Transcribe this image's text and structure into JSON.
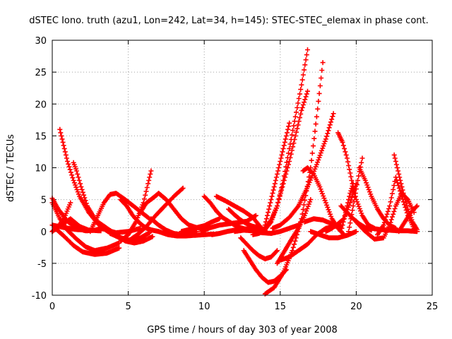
{
  "chart_data": {
    "type": "scatter",
    "title": "dSTEC Iono. truth (azu1, Lon=242, Lat=34, h=145): STEC-STEC_elemax in phase cont.",
    "xlabel": "GPS time / hours of day 303 of year 2008",
    "ylabel": "dSTEC  / TECUs",
    "xlim": [
      0,
      25
    ],
    "ylim": [
      -10,
      30
    ],
    "xticks": [
      0,
      5,
      10,
      15,
      20,
      25
    ],
    "yticks": [
      -10,
      -5,
      0,
      5,
      10,
      15,
      20,
      25,
      30
    ],
    "grid": true,
    "marker": "+",
    "color": "#ff0000",
    "series": [
      {
        "x": [
          0.0,
          0.4,
          1.0,
          1.6,
          2.2,
          2.8,
          3.4
        ],
        "y": [
          5.2,
          3.5,
          1.6,
          0.5,
          0.1,
          0.2,
          0.6
        ]
      },
      {
        "x": [
          0.0,
          0.5,
          1.0,
          1.6,
          2.2,
          2.8,
          3.6,
          4.4
        ],
        "y": [
          4.5,
          2.0,
          0.2,
          -1.2,
          -2.4,
          -3.0,
          -2.6,
          -1.8
        ]
      },
      {
        "x": [
          0.0,
          0.4,
          0.8,
          1.2
        ],
        "y": [
          0.0,
          0.8,
          2.2,
          4.5
        ]
      },
      {
        "x": [
          0.0,
          0.6,
          1.2,
          1.8,
          2.4
        ],
        "y": [
          0.0,
          1.0,
          2.0,
          0.8,
          0.2
        ]
      },
      {
        "x": [
          0.0,
          0.8,
          1.6,
          2.4,
          3.2
        ],
        "y": [
          1.0,
          0.6,
          0.3,
          0.2,
          0.1
        ]
      },
      {
        "x": [
          0.5,
          0.7,
          1.0,
          1.4,
          1.8,
          2.4,
          3.0,
          3.6,
          4.2,
          5.0,
          5.8
        ],
        "y": [
          16.0,
          14.0,
          11.0,
          8.0,
          5.5,
          3.0,
          1.2,
          0.2,
          -0.2,
          0.0,
          0.5
        ]
      },
      {
        "x": [
          0.2,
          0.8,
          1.4,
          2.0,
          2.8,
          3.6,
          4.4
        ],
        "y": [
          0.5,
          -0.8,
          -2.2,
          -3.2,
          -3.6,
          -3.4,
          -2.6
        ]
      },
      {
        "x": [
          1.4,
          1.6,
          1.9,
          2.3,
          2.8,
          3.4,
          4.0,
          4.6,
          5.2,
          5.8,
          6.4
        ],
        "y": [
          10.8,
          9.5,
          7.0,
          4.0,
          2.0,
          0.4,
          -0.5,
          -1.2,
          -1.4,
          -1.0,
          -0.2
        ]
      },
      {
        "x": [
          2.5,
          3.0,
          3.4,
          3.8,
          4.2,
          4.8,
          5.6,
          6.4
        ],
        "y": [
          0.0,
          2.5,
          4.5,
          5.8,
          6.0,
          5.0,
          3.5,
          2.0
        ]
      },
      {
        "x": [
          3.0,
          3.6,
          4.2,
          4.8,
          5.4,
          6.0
        ],
        "y": [
          1.5,
          0.5,
          -0.5,
          -1.5,
          -1.8,
          -1.0
        ]
      },
      {
        "x": [
          4.5,
          4.9,
          5.3,
          5.8,
          6.2,
          6.6,
          7.0
        ],
        "y": [
          5.0,
          4.0,
          2.5,
          1.2,
          0.5,
          0.2,
          0.0
        ]
      },
      {
        "x": [
          3.8,
          4.3,
          4.8,
          5.4,
          6.0,
          6.6
        ],
        "y": [
          -0.3,
          -0.8,
          -1.2,
          -1.8,
          -1.5,
          -0.8
        ]
      },
      {
        "x": [
          4.5,
          5.0,
          5.5,
          6.0,
          6.3,
          6.5
        ],
        "y": [
          -1.5,
          -0.5,
          1.5,
          4.5,
          7.5,
          9.5
        ]
      },
      {
        "x": [
          5.0,
          5.6,
          6.2,
          6.8,
          7.4,
          8.0,
          8.6
        ],
        "y": [
          -1.5,
          -0.5,
          0.8,
          2.5,
          4.0,
          5.5,
          6.8
        ]
      },
      {
        "x": [
          5.8,
          6.2,
          6.6,
          7.0
        ],
        "y": [
          3.0,
          4.5,
          5.2,
          6.0
        ]
      },
      {
        "x": [
          6.5,
          7.0,
          7.5,
          8.0,
          8.5,
          9.0,
          9.5
        ],
        "y": [
          2.0,
          1.0,
          0.2,
          -0.3,
          -0.5,
          -0.3,
          0.0
        ]
      },
      {
        "x": [
          7.0,
          7.5,
          8.0,
          8.5,
          9.0,
          9.5,
          10.0
        ],
        "y": [
          6.0,
          5.0,
          3.5,
          2.0,
          1.0,
          0.6,
          0.4
        ]
      },
      {
        "x": [
          7.0,
          7.6,
          8.2,
          8.8,
          9.4,
          10.0,
          10.6
        ],
        "y": [
          0.0,
          -0.5,
          -0.7,
          -0.7,
          -0.6,
          -0.5,
          -0.4
        ]
      },
      {
        "x": [
          8.5,
          9.0,
          9.5,
          10.0,
          10.5,
          11.0
        ],
        "y": [
          0.0,
          0.3,
          0.6,
          0.9,
          1.5,
          2.0
        ]
      },
      {
        "x": [
          10.0,
          10.4,
          10.8,
          11.2,
          11.6,
          12.0,
          12.4,
          12.8,
          13.2,
          13.6
        ],
        "y": [
          5.5,
          4.5,
          3.2,
          2.2,
          1.6,
          1.0,
          0.6,
          0.3,
          0.2,
          0.2
        ]
      },
      {
        "x": [
          9.8,
          10.4,
          11.0,
          11.6,
          12.2,
          12.8,
          13.4
        ],
        "y": [
          0.0,
          0.6,
          1.0,
          1.2,
          1.4,
          1.6,
          2.5
        ]
      },
      {
        "x": [
          10.5,
          11.0,
          11.5,
          12.0,
          12.5,
          13.0,
          13.5,
          14.0
        ],
        "y": [
          -0.5,
          -0.3,
          0.0,
          0.2,
          0.4,
          0.4,
          0.3,
          0.2
        ]
      },
      {
        "x": [
          10.8,
          11.4,
          12.0,
          12.6,
          13.2,
          13.6,
          14.0
        ],
        "y": [
          5.5,
          4.8,
          4.0,
          3.2,
          2.2,
          1.0,
          0.0
        ]
      },
      {
        "x": [
          11.6,
          12.0,
          12.4,
          12.8,
          13.2,
          13.6
        ],
        "y": [
          3.5,
          2.6,
          1.8,
          1.2,
          0.8,
          0.6
        ]
      },
      {
        "x": [
          12.0,
          12.6,
          13.2,
          13.8,
          14.4,
          15.0,
          15.6,
          16.2
        ],
        "y": [
          0.0,
          0.2,
          0.1,
          -0.2,
          -0.3,
          0.0,
          0.5,
          1.0
        ]
      },
      {
        "x": [
          12.4,
          12.8,
          13.2,
          13.6,
          14.0,
          14.4,
          14.8
        ],
        "y": [
          -1.0,
          -2.0,
          -3.0,
          -3.8,
          -4.3,
          -4.0,
          -3.0
        ]
      },
      {
        "x": [
          12.6,
          13.0,
          13.4,
          13.8,
          14.2,
          14.6,
          15.0,
          15.4
        ],
        "y": [
          -3.0,
          -4.5,
          -6.0,
          -7.2,
          -8.0,
          -7.8,
          -7.0,
          -6.0
        ]
      },
      {
        "x": [
          14.0,
          14.2,
          14.4,
          14.6,
          14.8,
          15.0,
          15.2,
          15.4,
          15.6
        ],
        "y": [
          1.0,
          3.0,
          5.0,
          7.0,
          9.0,
          11.0,
          13.0,
          15.0,
          17.0
        ]
      },
      {
        "x": [
          13.6,
          14.0,
          14.4,
          14.8,
          15.2,
          15.6,
          16.0,
          16.4,
          16.8
        ],
        "y": [
          0.0,
          0.5,
          1.8,
          4.0,
          7.5,
          11.0,
          15.0,
          19.0,
          22.0
        ]
      },
      {
        "x": [
          13.2,
          13.6,
          14.0,
          14.4,
          14.8,
          15.2,
          15.6,
          16.0,
          16.4,
          16.8
        ],
        "y": [
          -0.5,
          -0.3,
          0.3,
          1.5,
          4.0,
          8.0,
          13.0,
          18.0,
          23.0,
          28.5
        ]
      },
      {
        "x": [
          14.0,
          14.6,
          15.2,
          15.8,
          16.4,
          17.0,
          17.4,
          17.8
        ],
        "y": [
          -9.8,
          -8.8,
          -6.5,
          -3.0,
          2.0,
          10.0,
          18.0,
          26.5
        ]
      },
      {
        "x": [
          14.8,
          15.3,
          15.8,
          16.2,
          16.6,
          17.0
        ],
        "y": [
          -5.0,
          -3.0,
          -1.0,
          0.5,
          2.5,
          5.0
        ]
      },
      {
        "x": [
          14.5,
          15.0,
          15.6,
          16.2,
          16.8,
          17.4,
          18.0,
          18.5
        ],
        "y": [
          0.5,
          1.0,
          2.2,
          4.0,
          7.0,
          10.5,
          14.5,
          18.5
        ]
      },
      {
        "x": [
          15.0,
          15.6,
          16.2,
          16.8,
          17.4,
          18.0,
          18.6
        ],
        "y": [
          -4.5,
          -4.0,
          -3.0,
          -2.0,
          -0.5,
          0.5,
          0.8
        ]
      },
      {
        "x": [
          16.5,
          16.8,
          17.2,
          17.6,
          18.0,
          18.4,
          18.8,
          19.2
        ],
        "y": [
          9.5,
          10.0,
          9.0,
          7.0,
          4.5,
          2.0,
          0.5,
          -0.5
        ]
      },
      {
        "x": [
          16.6,
          17.2,
          17.8,
          18.4,
          19.0
        ],
        "y": [
          1.5,
          2.0,
          1.8,
          1.2,
          0.8
        ]
      },
      {
        "x": [
          18.0,
          18.4,
          18.8,
          19.2,
          19.6,
          20.0
        ],
        "y": [
          0.0,
          0.5,
          1.2,
          2.0,
          4.5,
          7.5
        ]
      },
      {
        "x": [
          18.8,
          19.1,
          19.4,
          19.7,
          20.0,
          20.4,
          20.8,
          21.2
        ],
        "y": [
          15.5,
          14.0,
          11.5,
          8.0,
          5.0,
          2.5,
          1.0,
          0.5
        ]
      },
      {
        "x": [
          17.0,
          17.6,
          18.2,
          18.8,
          19.4,
          20.0
        ],
        "y": [
          0.0,
          -0.5,
          -1.0,
          -1.0,
          -0.6,
          0.0
        ]
      },
      {
        "x": [
          19.0,
          19.2,
          19.4,
          19.6,
          19.8
        ],
        "y": [
          0.0,
          2.0,
          4.0,
          6.0,
          7.5
        ]
      },
      {
        "x": [
          19.0,
          19.4,
          19.8,
          20.2,
          20.6,
          21.0
        ],
        "y": [
          4.0,
          3.0,
          2.0,
          1.2,
          0.6,
          0.2
        ]
      },
      {
        "x": [
          19.5,
          19.8,
          20.1,
          20.4
        ],
        "y": [
          0.0,
          4.0,
          8.0,
          11.5
        ]
      },
      {
        "x": [
          20.2,
          20.6,
          21.0,
          21.4,
          21.8,
          22.2,
          22.6
        ],
        "y": [
          10.0,
          8.0,
          5.5,
          3.5,
          2.0,
          1.0,
          0.5
        ]
      },
      {
        "x": [
          20.0,
          20.6,
          21.2,
          21.8,
          22.2,
          22.6,
          23.0,
          23.4,
          23.8
        ],
        "y": [
          1.5,
          0.0,
          -1.2,
          -1.0,
          1.0,
          4.0,
          6.0,
          5.0,
          3.0
        ]
      },
      {
        "x": [
          21.4,
          21.8,
          22.2,
          22.6,
          23.0,
          23.4,
          23.8
        ],
        "y": [
          -0.5,
          1.0,
          4.0,
          8.5,
          5.5,
          2.5,
          0.5
        ]
      },
      {
        "x": [
          22.5,
          22.8,
          23.1,
          23.4,
          23.7,
          24.0
        ],
        "y": [
          12.0,
          9.0,
          6.0,
          3.5,
          1.5,
          0.3
        ]
      },
      {
        "x": [
          21.0,
          21.6,
          22.2,
          22.8,
          23.4,
          24.0
        ],
        "y": [
          0.5,
          0.3,
          0.2,
          0.1,
          0.1,
          0.0
        ]
      },
      {
        "x": [
          22.8,
          23.2,
          23.6,
          24.0
        ],
        "y": [
          0.0,
          1.5,
          3.0,
          4.0
        ]
      }
    ]
  }
}
